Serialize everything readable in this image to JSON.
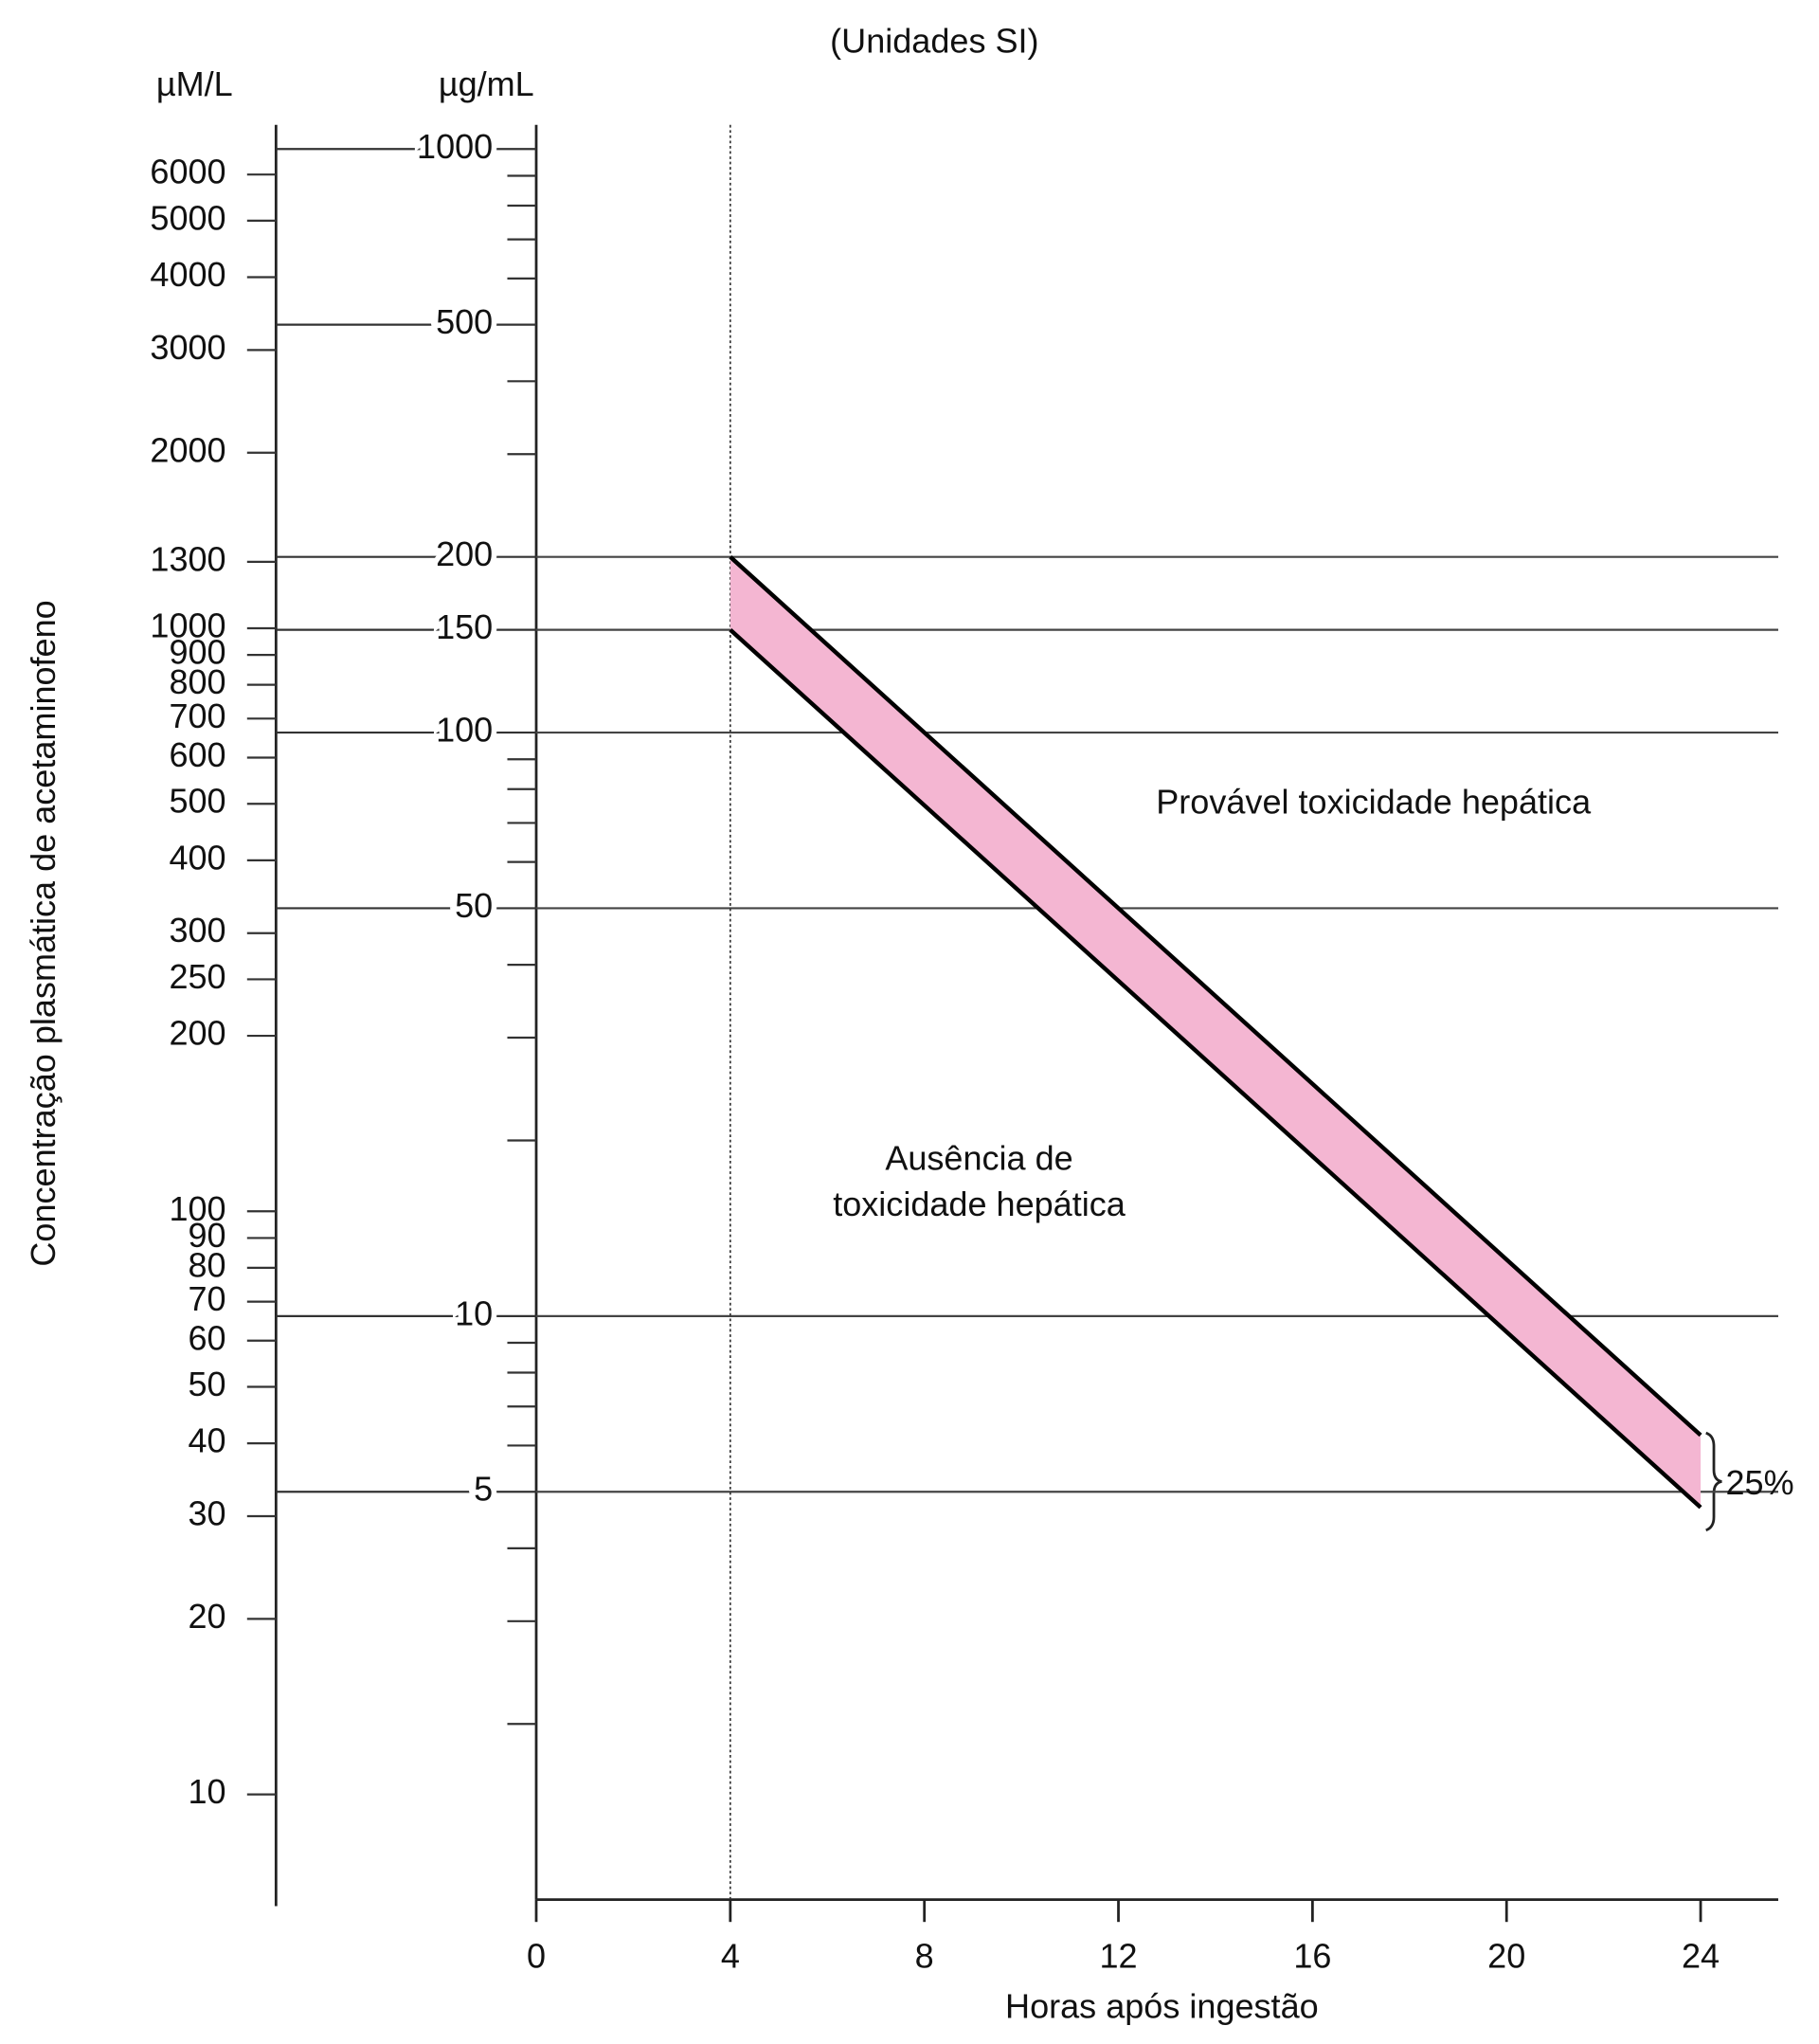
{
  "chart_data": {
    "type": "nomogram",
    "title": "(Unidades SI)",
    "y2_unit": "µM/L",
    "y_unit": "µg/mL",
    "ylabel": "Concentração plasmática de acetaminofeno",
    "xlabel": "Horas após ingestão",
    "xlim": [
      0,
      25.6
    ],
    "xticks": [
      0,
      4,
      8,
      12,
      16,
      20,
      24
    ],
    "yscale": "log",
    "ylim": [
      1,
      1100
    ],
    "yticks": [
      1000,
      500,
      200,
      150,
      100,
      50,
      10,
      5
    ],
    "yminorticks": [
      900,
      800,
      700,
      600,
      400,
      300,
      90,
      80,
      70,
      60,
      40,
      30,
      20,
      9,
      8,
      7,
      6,
      4,
      3,
      2
    ],
    "ygrid": [
      200,
      150,
      100,
      50,
      10,
      5
    ],
    "y2lim": [
      6.6,
      7300
    ],
    "y2ticks": [
      6000,
      5000,
      4000,
      3000,
      2000,
      1300,
      1000,
      900,
      800,
      700,
      600,
      500,
      400,
      300,
      250,
      200,
      100,
      90,
      80,
      70,
      60,
      50,
      40,
      30,
      20,
      10
    ],
    "vline": 4,
    "band_color": "#f4b6d2",
    "series": [
      {
        "x": [
          4,
          24
        ],
        "values": [
          200,
          6.25
        ],
        "color": "#000000"
      },
      {
        "x": [
          4,
          24
        ],
        "values": [
          150,
          4.7
        ],
        "color": "#000000"
      }
    ],
    "annotations": [
      "Provável toxicidade hepática",
      "Ausência de",
      "toxicidade hepática",
      "25%"
    ]
  }
}
